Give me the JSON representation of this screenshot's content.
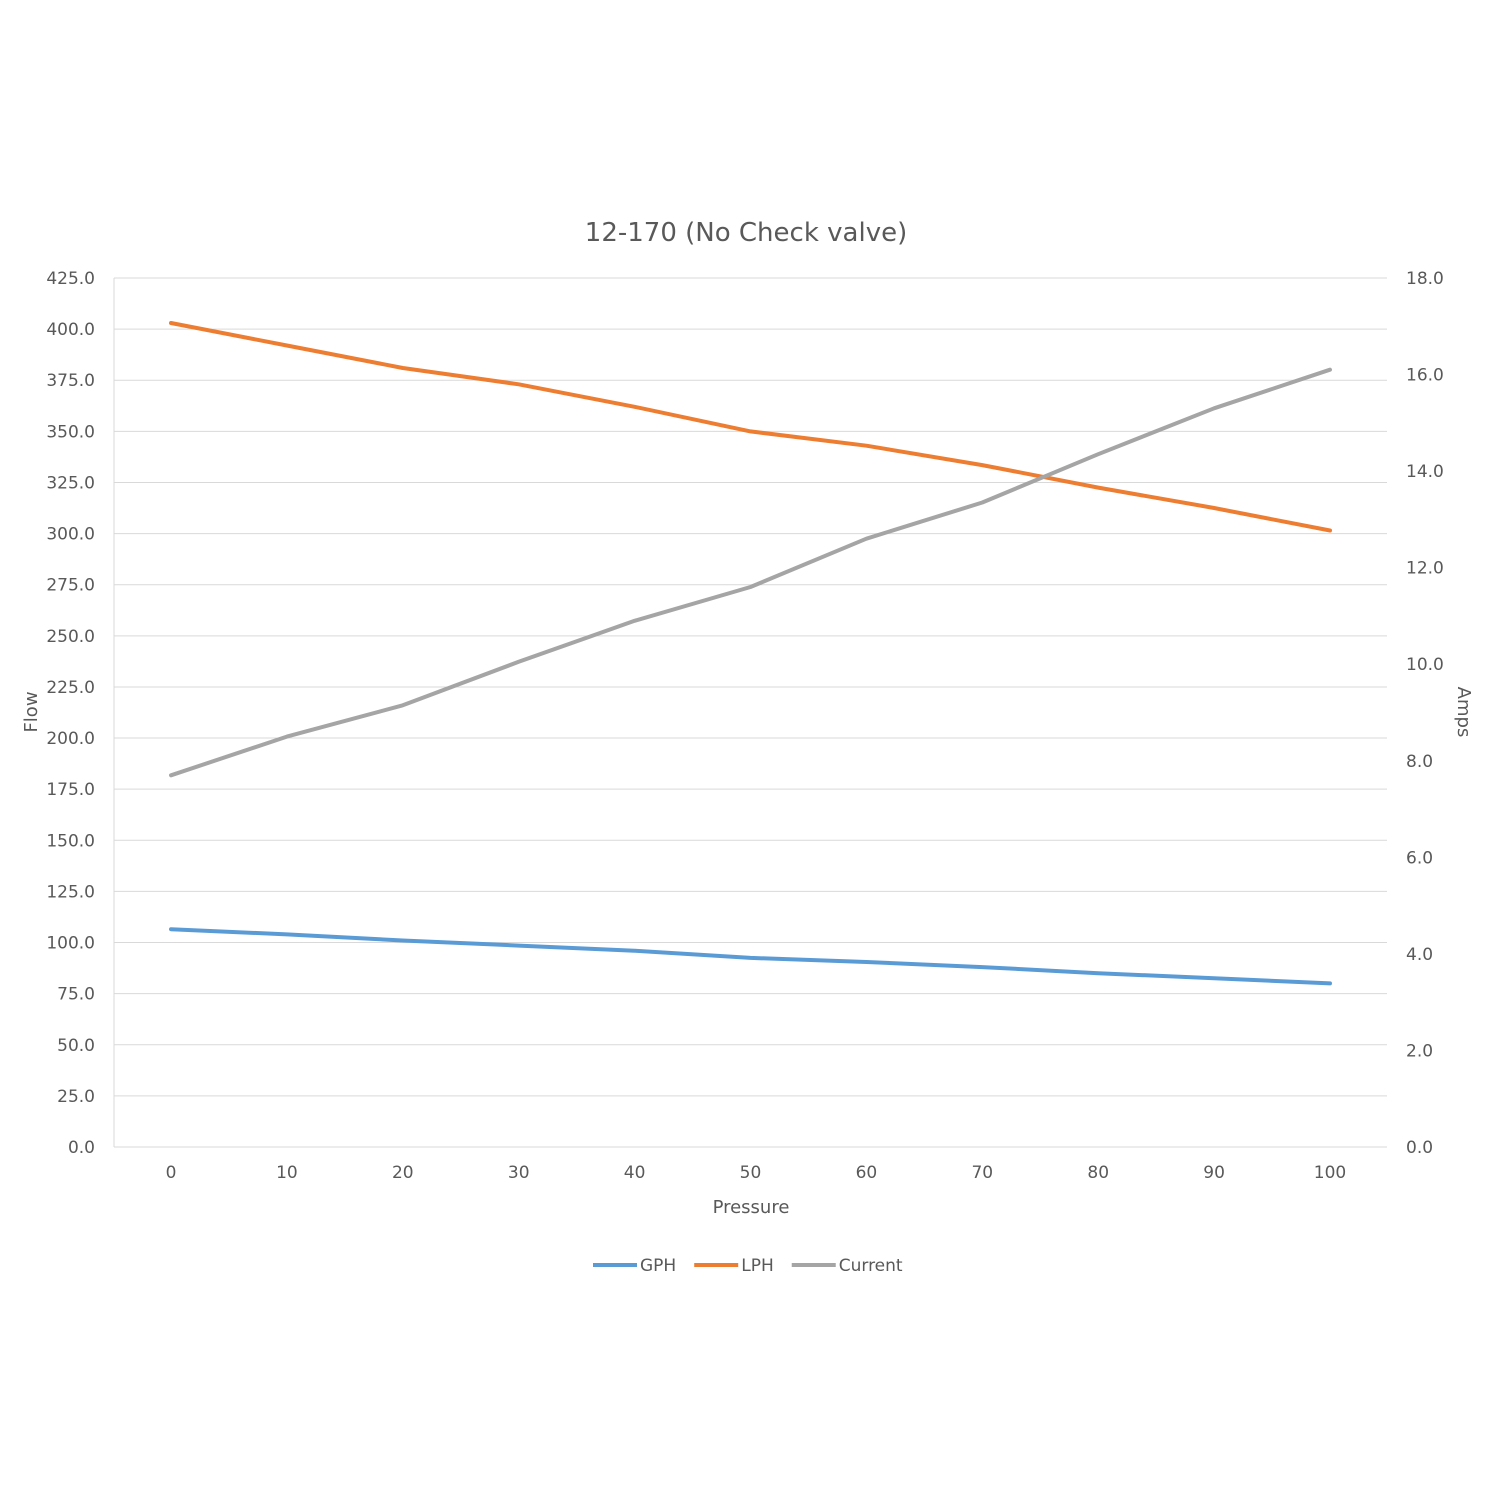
{
  "chart_data": {
    "type": "line",
    "title": "12-170 (No Check valve)",
    "xlabel": "Pressure",
    "ylabel": "Flow",
    "y2label": "Amps",
    "x": [
      0,
      10,
      20,
      30,
      40,
      50,
      60,
      70,
      80,
      90,
      100
    ],
    "x_tick_labels": [
      "0",
      "10",
      "20",
      "30",
      "40",
      "50",
      "60",
      "70",
      "80",
      "90",
      "100"
    ],
    "ylim": [
      0,
      425
    ],
    "y_ticks": [
      "0.0",
      "25.0",
      "50.0",
      "75.0",
      "100.0",
      "125.0",
      "150.0",
      "175.0",
      "200.0",
      "225.0",
      "250.0",
      "275.0",
      "300.0",
      "325.0",
      "350.0",
      "375.0",
      "400.0",
      "425.0"
    ],
    "y2lim": [
      0,
      18
    ],
    "y2_ticks": [
      "0.0",
      "2.0",
      "4.0",
      "6.0",
      "8.0",
      "10.0",
      "12.0",
      "14.0",
      "16.0",
      "18.0"
    ],
    "grid": true,
    "legend_position": "bottom",
    "series": [
      {
        "name": "GPH",
        "axis": "left",
        "color": "#5b9bd5",
        "values": [
          106.5,
          104,
          101,
          98.5,
          96,
          92.5,
          90.5,
          88,
          85,
          82.5,
          80
        ]
      },
      {
        "name": "LPH",
        "axis": "left",
        "color": "#ed7d31",
        "values": [
          403,
          392,
          381,
          373,
          362,
          350,
          343,
          333.5,
          322.5,
          312.5,
          301.5
        ]
      },
      {
        "name": "Current",
        "axis": "right",
        "color": "#a5a5a5",
        "values": [
          7.7,
          8.5,
          9.15,
          10.05,
          10.9,
          11.6,
          12.6,
          13.35,
          14.35,
          15.3,
          16.1
        ]
      }
    ]
  }
}
